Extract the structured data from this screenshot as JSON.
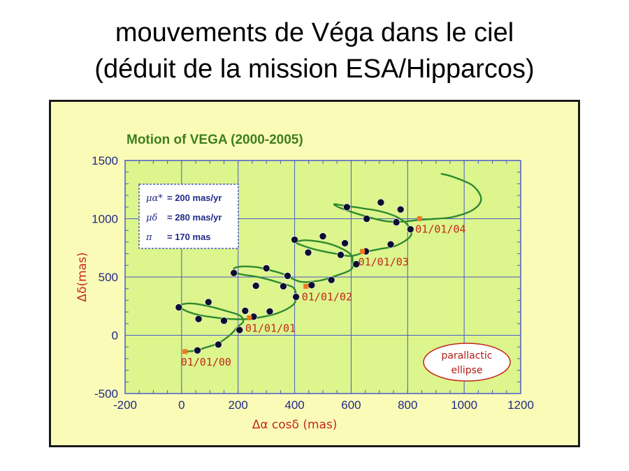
{
  "slide": {
    "title_line1": "mouvements de Véga dans le ciel",
    "title_line2": "(déduit de la mission ESA/Hipparcos)"
  },
  "chart_data": {
    "type": "line",
    "title": "Motion of VEGA (2000-2005)",
    "xlabel": "Δα cosδ (mas)",
    "ylabel": "Δδ(mas)",
    "xlim": [
      -200,
      1200
    ],
    "ylim": [
      -500,
      1500
    ],
    "xticks": [
      -200,
      0,
      200,
      400,
      600,
      800,
      1000,
      1200
    ],
    "yticks": [
      -500,
      0,
      500,
      1000,
      1500
    ],
    "grid": true,
    "colors": {
      "plot_bg": "#dcf58c",
      "frame_bg": "#fbfbb8",
      "grid": "#4b5bc8",
      "path": "#2f8a2f",
      "points": "#0d0d33",
      "date_marker": "#f07820",
      "text_blue": "#1f2a86",
      "text_red": "#c4261c",
      "title_green": "#3e7f1f"
    },
    "legend": {
      "position": "top-left",
      "lines": [
        {
          "symbol": "μα*",
          "text": "= 200 mas/yr"
        },
        {
          "symbol": "μδ",
          "text": "= 280 mas/yr"
        },
        {
          "symbol": "π",
          "text": "= 170 mas"
        }
      ]
    },
    "parallax_path": [
      [
        20,
        -140
      ],
      [
        52,
        -130
      ],
      [
        85,
        -105
      ],
      [
        130,
        -68
      ],
      [
        170,
        0
      ],
      [
        200,
        75
      ],
      [
        218,
        118
      ],
      [
        206,
        170
      ],
      [
        160,
        207
      ],
      [
        100,
        247
      ],
      [
        35,
        273
      ],
      [
        -5,
        258
      ],
      [
        8,
        218
      ],
      [
        55,
        177
      ],
      [
        105,
        157
      ],
      [
        160,
        142
      ],
      [
        220,
        138
      ],
      [
        280,
        155
      ],
      [
        340,
        190
      ],
      [
        395,
        262
      ],
      [
        405,
        340
      ],
      [
        395,
        410
      ],
      [
        352,
        447
      ],
      [
        280,
        495
      ],
      [
        200,
        530
      ],
      [
        185,
        570
      ],
      [
        210,
        590
      ],
      [
        265,
        585
      ],
      [
        310,
        560
      ],
      [
        360,
        525
      ],
      [
        420,
        460
      ],
      [
        490,
        470
      ],
      [
        545,
        510
      ],
      [
        600,
        565
      ],
      [
        605,
        640
      ],
      [
        600,
        690
      ],
      [
        570,
        740
      ],
      [
        515,
        790
      ],
      [
        445,
        815
      ],
      [
        405,
        800
      ],
      [
        428,
        770
      ],
      [
        475,
        735
      ],
      [
        545,
        700
      ],
      [
        600,
        680
      ],
      [
        650,
        715
      ],
      [
        700,
        740
      ],
      [
        760,
        770
      ],
      [
        810,
        850
      ],
      [
        805,
        930
      ],
      [
        770,
        1005
      ],
      [
        710,
        1060
      ],
      [
        640,
        1090
      ],
      [
        570,
        1115
      ],
      [
        540,
        1125
      ],
      [
        555,
        1100
      ],
      [
        600,
        1060
      ],
      [
        660,
        1015
      ],
      [
        720,
        980
      ],
      [
        780,
        975
      ],
      [
        840,
        990
      ],
      [
        900,
        1000
      ],
      [
        960,
        1015
      ],
      [
        1030,
        1075
      ],
      [
        1060,
        1170
      ],
      [
        1030,
        1285
      ],
      [
        960,
        1360
      ],
      [
        920,
        1385
      ]
    ],
    "observed_points": [
      [
        56,
        -130
      ],
      [
        130,
        -80
      ],
      [
        205,
        45
      ],
      [
        60,
        140
      ],
      [
        150,
        125
      ],
      [
        225,
        210
      ],
      [
        -10,
        240
      ],
      [
        95,
        285
      ],
      [
        255,
        160
      ],
      [
        312,
        205
      ],
      [
        405,
        330
      ],
      [
        185,
        535
      ],
      [
        263,
        425
      ],
      [
        300,
        575
      ],
      [
        360,
        420
      ],
      [
        375,
        510
      ],
      [
        460,
        430
      ],
      [
        530,
        475
      ],
      [
        618,
        610
      ],
      [
        652,
        720
      ],
      [
        740,
        780
      ],
      [
        810,
        910
      ],
      [
        400,
        820
      ],
      [
        448,
        710
      ],
      [
        500,
        850
      ],
      [
        563,
        690
      ],
      [
        578,
        790
      ],
      [
        585,
        1100
      ],
      [
        655,
        1000
      ],
      [
        705,
        1140
      ],
      [
        760,
        970
      ],
      [
        775,
        1080
      ]
    ],
    "epoch_markers": [
      {
        "label": "01/01/00",
        "x": 12,
        "y": -140
      },
      {
        "label": "01/01/01",
        "x": 240,
        "y": 150
      },
      {
        "label": "01/01/02",
        "x": 440,
        "y": 420
      },
      {
        "label": "01/01/03",
        "x": 640,
        "y": 720
      },
      {
        "label": "01/01/04",
        "x": 842,
        "y": 1000
      }
    ],
    "annotation": {
      "line1": "parallactic",
      "line2": "ellipse"
    }
  }
}
